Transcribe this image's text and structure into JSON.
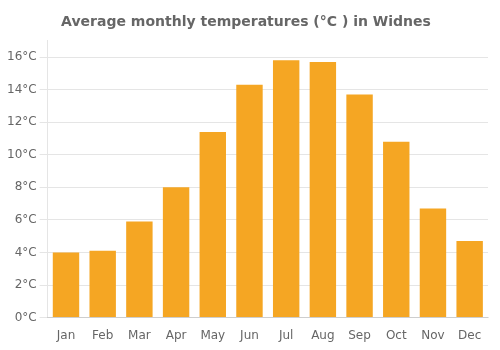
{
  "chart_data": {
    "type": "bar",
    "title": "Average monthly temperatures (°C ) in Widnes",
    "categories": [
      "Jan",
      "Feb",
      "Mar",
      "Apr",
      "May",
      "Jun",
      "Jul",
      "Aug",
      "Sep",
      "Oct",
      "Nov",
      "Dec"
    ],
    "values": [
      4.0,
      4.1,
      5.9,
      8.0,
      11.4,
      14.3,
      15.8,
      15.7,
      13.7,
      10.8,
      6.7,
      4.7
    ],
    "color": "#F5A623",
    "ylim": [
      0,
      17
    ],
    "yticks": [
      {
        "value": 0,
        "label": "0°C"
      },
      {
        "value": 2,
        "label": "2°C"
      },
      {
        "value": 4,
        "label": "4°C"
      },
      {
        "value": 6,
        "label": "6°C"
      },
      {
        "value": 8,
        "label": "8°C"
      },
      {
        "value": 10,
        "label": "10°C"
      },
      {
        "value": 12,
        "label": "12°C"
      },
      {
        "value": 14,
        "label": "14°C"
      },
      {
        "value": 16,
        "label": "16°C"
      }
    ],
    "grid": true
  }
}
